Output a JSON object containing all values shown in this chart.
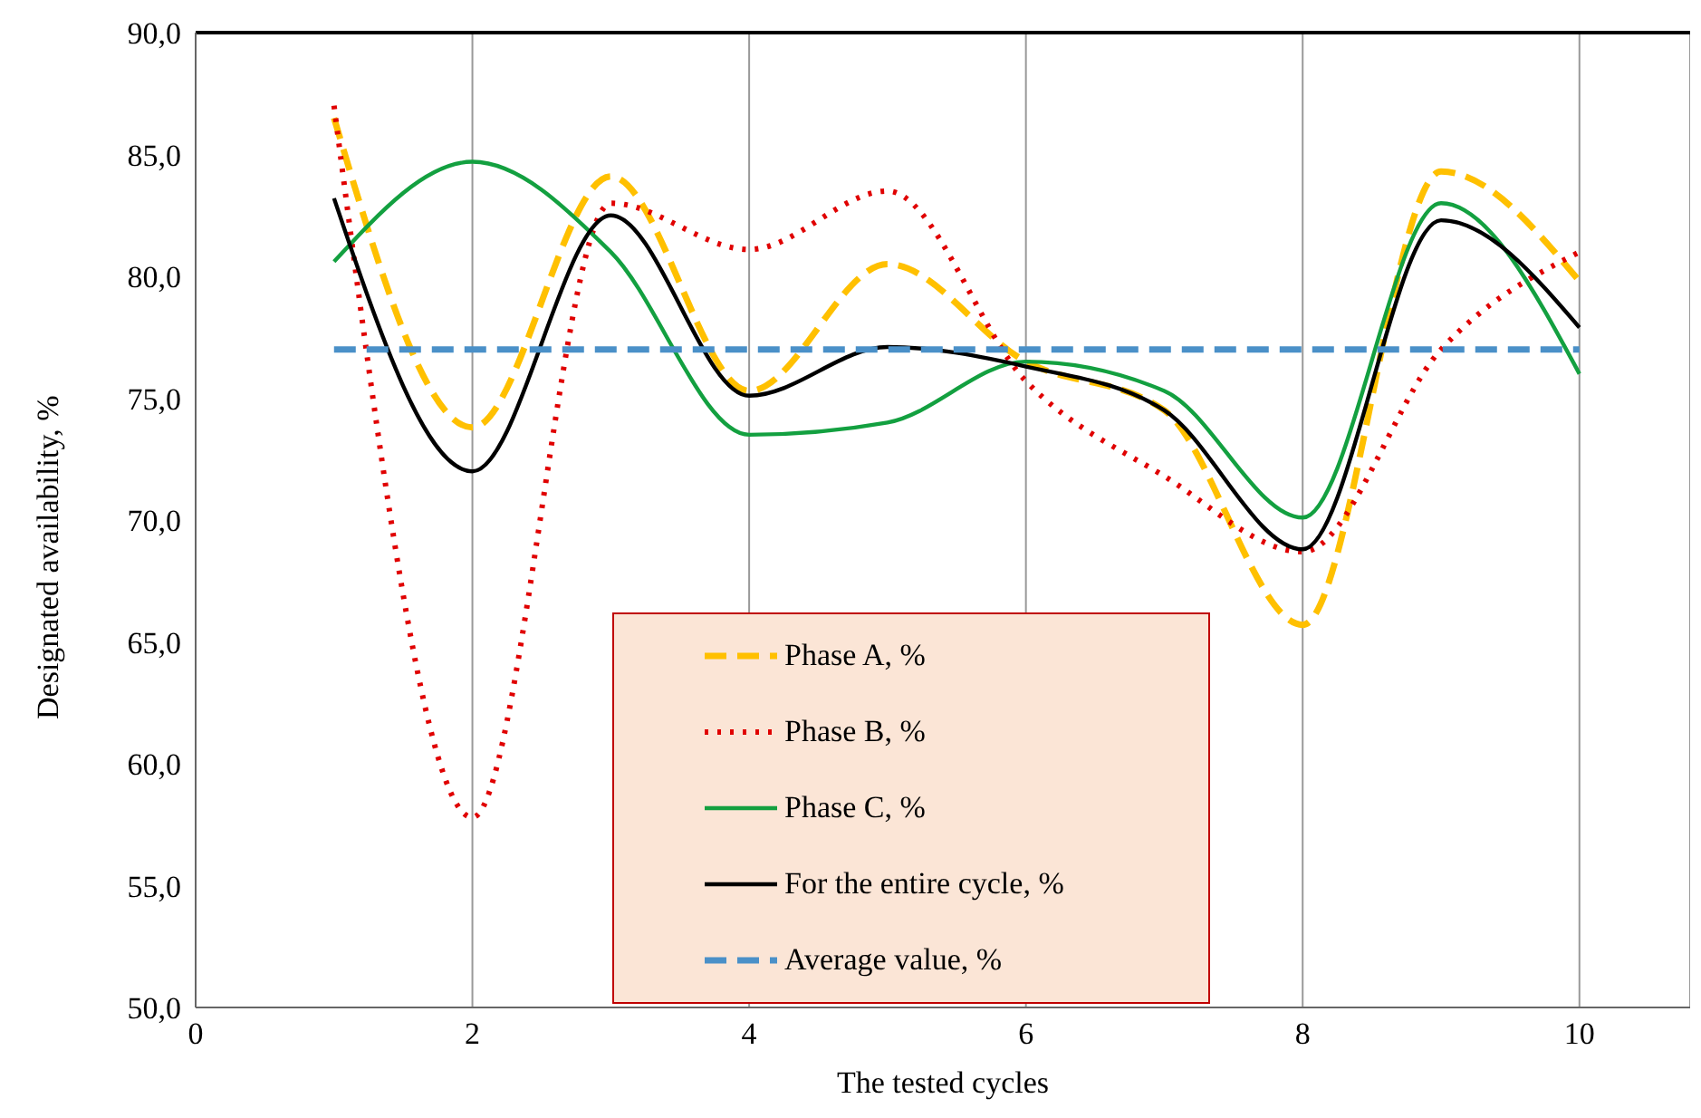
{
  "chart_data": {
    "type": "line",
    "xlabel": "The tested cycles",
    "ylabel": "Designated availability, %",
    "x": [
      1,
      2,
      3,
      4,
      5,
      6,
      7,
      8,
      9,
      10
    ],
    "series": [
      {
        "name": "Phase A, %",
        "color": "#ffc000",
        "line_style": "dashed",
        "values": [
          86.5,
          73.8,
          84.1,
          75.3,
          80.5,
          76.5,
          74.5,
          65.7,
          84.3,
          79.8
        ]
      },
      {
        "name": "Phase B, %",
        "color": "#e00000",
        "line_style": "dotted",
        "values": [
          87.0,
          57.8,
          83.0,
          81.1,
          83.5,
          75.7,
          71.8,
          68.7,
          77.0,
          81.0
        ]
      },
      {
        "name": "Phase C, %",
        "color": "#13a040",
        "line_style": "solid",
        "values": [
          80.6,
          84.7,
          81.0,
          73.5,
          74.0,
          76.5,
          75.3,
          70.1,
          83.0,
          76.0
        ]
      },
      {
        "name": "For the entire cycle, %",
        "color": "#000000",
        "line_style": "solid",
        "values": [
          83.2,
          72.0,
          82.5,
          75.1,
          77.1,
          76.3,
          74.5,
          68.8,
          82.3,
          77.9
        ]
      },
      {
        "name": "Average value, %",
        "color": "#4a90c8",
        "line_style": "dashed",
        "values": [
          77.0,
          77.0,
          77.0,
          77.0,
          77.0,
          77.0,
          77.0,
          77.0,
          77.0,
          77.0
        ]
      }
    ],
    "xlim": [
      0,
      10.8
    ],
    "xticks": [
      0,
      2,
      4,
      6,
      8,
      10
    ],
    "ylim": [
      50,
      90
    ],
    "yticks": [
      {
        "value": 50,
        "label": "50,0"
      },
      {
        "value": 55,
        "label": "55,0"
      },
      {
        "value": 60,
        "label": "60,0"
      },
      {
        "value": 65,
        "label": "65,0"
      },
      {
        "value": 70,
        "label": "70,0"
      },
      {
        "value": 75,
        "label": "75,0"
      },
      {
        "value": 80,
        "label": "80,0"
      },
      {
        "value": 85,
        "label": "85,0"
      },
      {
        "value": 90,
        "label": "90,0"
      }
    ],
    "grid": "x",
    "legend": "bottom",
    "marker": "none"
  }
}
